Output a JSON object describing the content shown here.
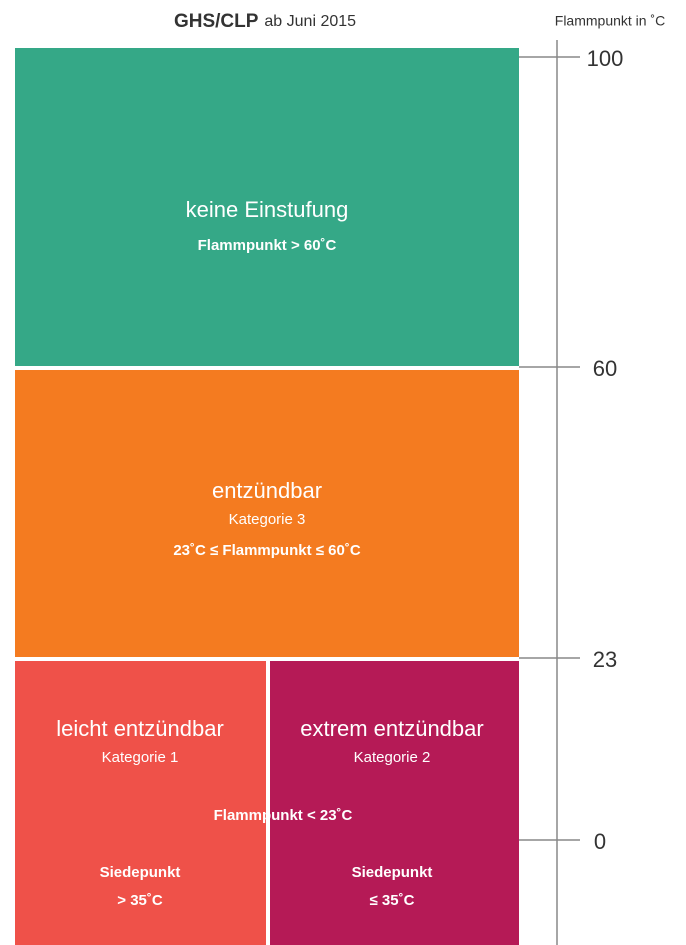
{
  "header": {
    "title": "GHS/CLP",
    "subtitle": "ab Juni 2015",
    "axis_label": "Flammpunkt in ˚C"
  },
  "axis": {
    "ticks": [
      "100",
      "60",
      "23",
      "0"
    ]
  },
  "blocks": [
    {
      "title": "keine Einstufung",
      "condition": "Flammpunkt > 60˚C"
    },
    {
      "title": "entzündbar",
      "category": "Kategorie 3",
      "condition": "23˚C ≤ Flammpunkt ≤ 60˚C"
    },
    {
      "title": "leicht entzündbar",
      "category": "Kategorie 1",
      "boiling_label": "Siedepunkt",
      "boiling_condition": "> 35˚C"
    },
    {
      "title": "extrem entzündbar",
      "category": "Kategorie 2",
      "boiling_label": "Siedepunkt",
      "boiling_condition": "≤ 35˚C"
    }
  ],
  "shared_condition": "Flammpunkt < 23˚C"
}
